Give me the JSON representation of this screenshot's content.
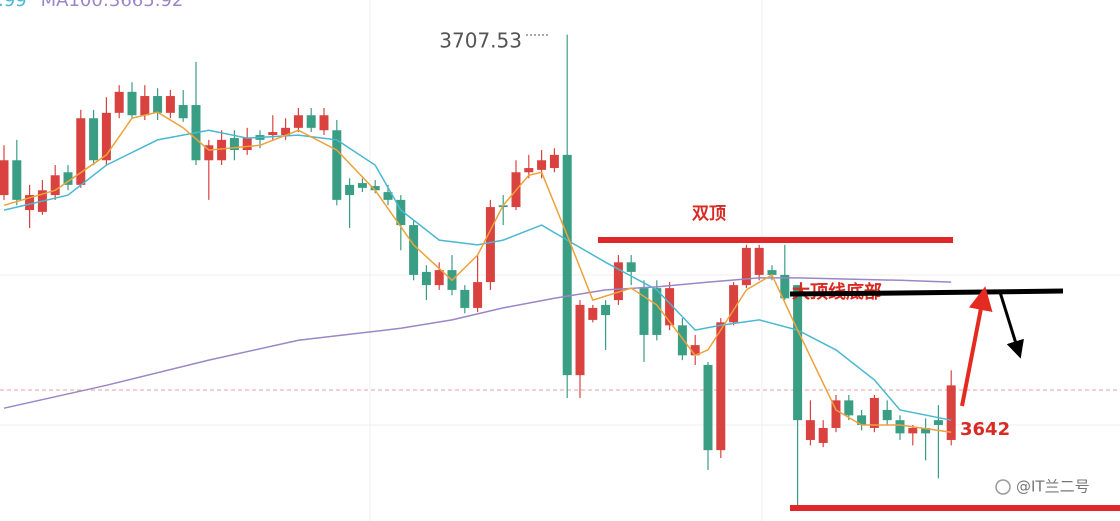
{
  "chart_data": {
    "type": "candlestick",
    "up_color": "#d9423f",
    "down_color": "#3a9e84",
    "ylim": [
      3626.5,
      3713.3
    ],
    "open": [
      3680.8,
      3686.6,
      3678.3,
      3678.0,
      3680.8,
      3684.6,
      3682.5,
      3693.6,
      3686.6,
      3694.5,
      3698.0,
      3694.1,
      3697.3,
      3694.5,
      3695.8,
      3695.8,
      3686.6,
      3686.6,
      3690.3,
      3688.3,
      3690.8,
      3690.8,
      3690.8,
      3692.0,
      3694.1,
      3691.6,
      3691.6,
      3682.5,
      3682.8,
      3682.3,
      3681.3,
      3680.0,
      3675.8,
      3668.0,
      3665.8,
      3668.3,
      3665.0,
      3662.0,
      3666.3,
      3679.1,
      3678.8,
      3684.6,
      3685.0,
      3685.3,
      3687.5,
      3650.8,
      3660.0,
      3662.5,
      3663.3,
      3669.6,
      3665.3,
      3665.3,
      3659.1,
      3659.1,
      3654.1,
      3652.5,
      3638.3,
      3659.6,
      3665.8,
      3667.5,
      3668.3,
      3667.5,
      3665.8,
      3640.0,
      3639.5,
      3642.0,
      3646.6,
      3644.1,
      3642.0,
      3645.0,
      3643.3,
      3641.1,
      3642.0,
      3643.3,
      3640.0
    ],
    "high": [
      3689.1,
      3690.0,
      3682.5,
      3683.3,
      3685.8,
      3685.8,
      3695.0,
      3695.0,
      3697.1,
      3699.1,
      3699.6,
      3699.1,
      3698.6,
      3698.3,
      3698.3,
      3703.0,
      3690.0,
      3691.6,
      3691.6,
      3692.0,
      3691.6,
      3694.1,
      3693.6,
      3695.3,
      3695.3,
      3695.3,
      3693.3,
      3683.6,
      3683.6,
      3683.3,
      3682.5,
      3680.8,
      3676.6,
      3669.1,
      3669.6,
      3670.8,
      3665.8,
      3670.8,
      3680.0,
      3680.8,
      3686.6,
      3687.5,
      3688.3,
      3688.6,
      3707.53,
      3663.3,
      3662.5,
      3663.3,
      3670.8,
      3670.8,
      3666.6,
      3666.6,
      3666.3,
      3660.3,
      3657.5,
      3653.0,
      3660.3,
      3666.3,
      3672.5,
      3672.5,
      3669.1,
      3672.5,
      3665.8,
      3646.6,
      3643.3,
      3647.5,
      3647.5,
      3645.0,
      3647.5,
      3646.6,
      3644.1,
      3642.5,
      3643.6,
      3645.8,
      3651.6
    ],
    "low": [
      3680.0,
      3679.1,
      3675.3,
      3677.5,
      3680.0,
      3681.6,
      3682.0,
      3685.8,
      3685.8,
      3693.6,
      3693.6,
      3693.3,
      3693.3,
      3693.6,
      3693.0,
      3685.8,
      3680.0,
      3685.8,
      3686.6,
      3687.5,
      3688.6,
      3690.0,
      3690.0,
      3691.3,
      3691.3,
      3690.8,
      3679.1,
      3675.3,
      3681.3,
      3681.1,
      3679.1,
      3671.6,
      3666.6,
      3663.3,
      3665.0,
      3664.1,
      3661.1,
      3661.3,
      3665.0,
      3675.8,
      3678.3,
      3683.6,
      3683.6,
      3684.6,
      3647.0,
      3647.0,
      3659.6,
      3655.0,
      3662.5,
      3665.8,
      3653.0,
      3656.6,
      3658.3,
      3653.3,
      3652.5,
      3635.0,
      3637.0,
      3659.1,
      3665.3,
      3666.6,
      3666.6,
      3663.3,
      3629.1,
      3639.1,
      3638.8,
      3641.3,
      3643.3,
      3641.6,
      3641.3,
      3642.5,
      3640.0,
      3639.1,
      3636.6,
      3633.6,
      3639.1
    ],
    "close": [
      3686.6,
      3680.0,
      3680.8,
      3681.6,
      3684.1,
      3682.5,
      3693.6,
      3686.6,
      3694.5,
      3698.0,
      3694.1,
      3697.3,
      3694.5,
      3697.3,
      3693.6,
      3686.6,
      3689.1,
      3690.0,
      3688.3,
      3690.3,
      3690.0,
      3691.3,
      3692.0,
      3694.1,
      3692.0,
      3694.1,
      3680.0,
      3680.8,
      3682.0,
      3681.6,
      3680.0,
      3675.8,
      3667.5,
      3665.8,
      3668.3,
      3665.0,
      3662.0,
      3666.3,
      3678.8,
      3678.8,
      3684.6,
      3685.3,
      3686.6,
      3687.5,
      3650.8,
      3662.5,
      3662.0,
      3660.8,
      3669.6,
      3668.0,
      3657.5,
      3657.5,
      3665.3,
      3654.1,
      3655.8,
      3638.3,
      3659.6,
      3665.8,
      3672.0,
      3672.0,
      3667.5,
      3663.6,
      3643.3,
      3643.3,
      3642.0,
      3646.6,
      3644.1,
      3642.5,
      3647.0,
      3643.3,
      3641.1,
      3642.0,
      3641.1,
      3642.5,
      3649.1
    ],
    "lines": [
      {
        "color": "#9b86c8",
        "x": [
          0,
          8,
          16,
          23,
          31,
          35,
          39,
          43,
          47,
          51,
          55,
          59,
          62,
          70,
          74
        ],
        "values": [
          3645.3,
          3649.1,
          3653.3,
          3656.6,
          3658.6,
          3660.0,
          3662.0,
          3663.6,
          3665.0,
          3665.5,
          3666.3,
          3667.0,
          3667.0,
          3666.6,
          3666.3
        ]
      },
      {
        "color": "#4ab8d0",
        "x": [
          0,
          5,
          8,
          12,
          16,
          19,
          23,
          26,
          29,
          31,
          34,
          37,
          39,
          42,
          44,
          47,
          51,
          54,
          56,
          59,
          62,
          65,
          68,
          70,
          74
        ],
        "values": [
          3678.3,
          3680.8,
          3685.8,
          3690.0,
          3691.6,
          3690.3,
          3690.8,
          3690.0,
          3685.8,
          3678.3,
          3673.3,
          3672.5,
          3673.3,
          3675.8,
          3673.3,
          3669.6,
          3665.0,
          3658.3,
          3659.1,
          3660.0,
          3658.3,
          3655.0,
          3650.0,
          3645.0,
          3643.3
        ]
      },
      {
        "color": "#eea13c",
        "x": [
          0,
          4,
          8,
          10,
          12,
          14,
          16,
          20,
          23,
          26,
          29,
          32,
          35,
          37,
          39,
          41,
          42,
          44,
          46,
          49,
          51,
          54,
          55,
          58,
          60,
          62,
          65,
          67,
          70,
          74
        ],
        "values": [
          3679.1,
          3681.6,
          3687.5,
          3693.6,
          3694.6,
          3692.0,
          3688.3,
          3689.1,
          3691.6,
          3688.3,
          3681.6,
          3672.5,
          3666.6,
          3670.8,
          3679.1,
          3684.1,
          3684.6,
          3674.1,
          3663.3,
          3665.3,
          3662.5,
          3654.1,
          3655.0,
          3665.0,
          3667.5,
          3658.3,
          3645.0,
          3642.5,
          3642.5,
          3641.3
        ]
      }
    ],
    "legend_texts": [
      {
        "text": ".99",
        "color": "#4ab8d0"
      },
      {
        "text": "MA100:3665.92",
        "color": "#9b86c8"
      }
    ],
    "max_label": 3707.53,
    "price_label": 3642,
    "annotations": {
      "double_top": "双顶",
      "neckline": "大顶线底部"
    },
    "watermark": "@IT兰二号"
  }
}
